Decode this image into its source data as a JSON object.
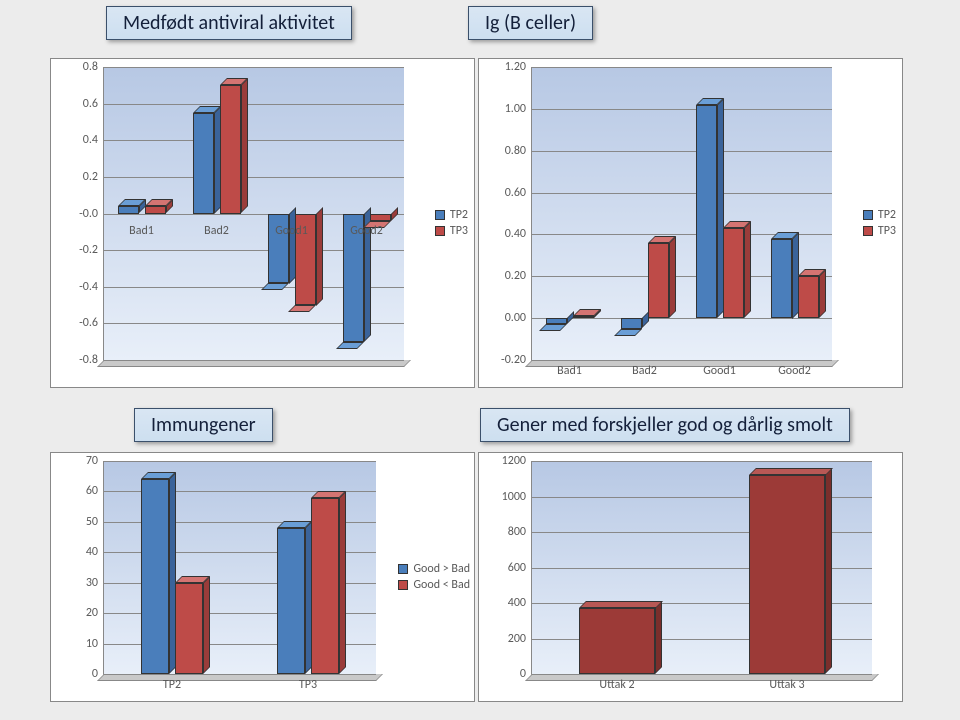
{
  "colors": {
    "blue": "#4a7ebb",
    "blue_top": "#6a9ed6",
    "blue_side": "#3a639a",
    "red": "#be4b48",
    "red_top": "#d47472",
    "red_side": "#9a3c3a",
    "red2": "#9c3a37",
    "red2_top": "#b85855",
    "red2_side": "#7a2e2b",
    "grid": "#888888",
    "text": "#595959"
  },
  "titles": {
    "tl": "Medfødt antiviral aktivitet",
    "tr": "Ig (B celler)",
    "bl": "Immungener",
    "br": "Gener med forskjeller god og dårlig smolt"
  },
  "legend_tp": [
    {
      "label": "TP2",
      "color": "blue"
    },
    {
      "label": "TP3",
      "color": "red"
    }
  ],
  "legend_gb": [
    {
      "label": "Good > Bad",
      "color": "blue"
    },
    {
      "label": "Good < Bad",
      "color": "red"
    }
  ],
  "chart1": {
    "type": "bar3d-grouped",
    "ymin": -0.8,
    "ymax": 0.8,
    "ystep": 0.2,
    "categories": [
      "Bad1",
      "Bad2",
      "Good1",
      "Good2"
    ],
    "series": [
      {
        "name": "TP2",
        "color": "blue",
        "values": [
          0.04,
          0.55,
          -0.38,
          -0.7
        ]
      },
      {
        "name": "TP3",
        "color": "red",
        "values": [
          0.04,
          0.7,
          -0.5,
          -0.04
        ]
      }
    ]
  },
  "chart2": {
    "type": "bar3d-grouped",
    "ymin": -0.2,
    "ymax": 1.2,
    "ystep": 0.2,
    "decimals": 2,
    "categories": [
      "Bad1",
      "Bad2",
      "Good1",
      "Good2"
    ],
    "series": [
      {
        "name": "TP2",
        "color": "blue",
        "values": [
          -0.03,
          -0.05,
          1.02,
          0.38
        ]
      },
      {
        "name": "TP3",
        "color": "red",
        "values": [
          0.01,
          0.36,
          0.43,
          0.2
        ]
      }
    ]
  },
  "chart3": {
    "type": "bar3d-grouped",
    "ymin": 0,
    "ymax": 70,
    "ystep": 10,
    "categories": [
      "TP2",
      "TP3"
    ],
    "series": [
      {
        "name": "Good > Bad",
        "color": "blue",
        "values": [
          64,
          48
        ]
      },
      {
        "name": "Good < Bad",
        "color": "red",
        "values": [
          30,
          58
        ]
      }
    ]
  },
  "chart4": {
    "type": "bar3d-single",
    "ymin": 0,
    "ymax": 1200,
    "ystep": 200,
    "categories": [
      "Uttak 2",
      "Uttak 3"
    ],
    "color": "red2",
    "values": [
      370,
      1120
    ]
  }
}
